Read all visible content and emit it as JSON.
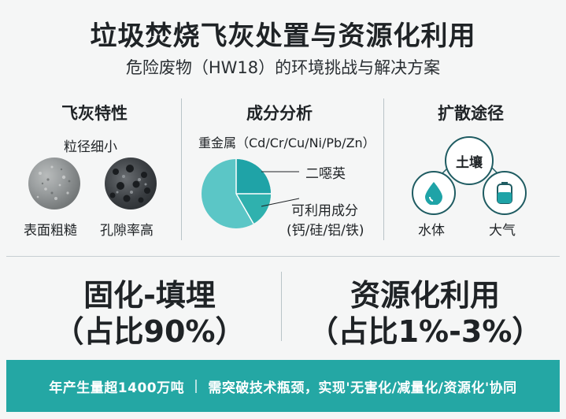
{
  "header": {
    "title": "垃圾焚烧飞灰处置与资源化利用",
    "subtitle": "危险废物（HW18）的环境挑战与解决方案"
  },
  "properties": {
    "title": "飞灰特性",
    "size_label": "粒径细小",
    "left_label": "表面粗糙",
    "right_label": "孔隙率高"
  },
  "composition": {
    "title": "成分分析",
    "heavy_metals": "重金属（Cd/Cr/Cu/Ni/Pb/Zn）",
    "dioxin": "二噁英",
    "usable": "可利用成分",
    "usable_detail": "(钙/硅/铝/铁)",
    "colors": {
      "main": "#5bc6c6",
      "slice1": "#1fa3a7",
      "slice2": "#2fb1ae"
    }
  },
  "diffusion": {
    "title": "扩散途径",
    "soil": "土壤",
    "water": "水体",
    "air": "大气",
    "water_icon": "water-drop-icon",
    "air_icon": "gas-cylinder-icon"
  },
  "solutions": {
    "solidify": "固化-填埋",
    "solidify_share": "（占比90%）",
    "reuse": "资源化利用",
    "reuse_share": "（占比1%-3%）"
  },
  "banner": {
    "left": "年产生量超1400万吨",
    "separator": "|",
    "right": "需突破技术瓶颈，实现'无害化/减量化/资源化'协同"
  },
  "colors": {
    "accent": "#24a7a4",
    "dark": "#1f5c62"
  }
}
